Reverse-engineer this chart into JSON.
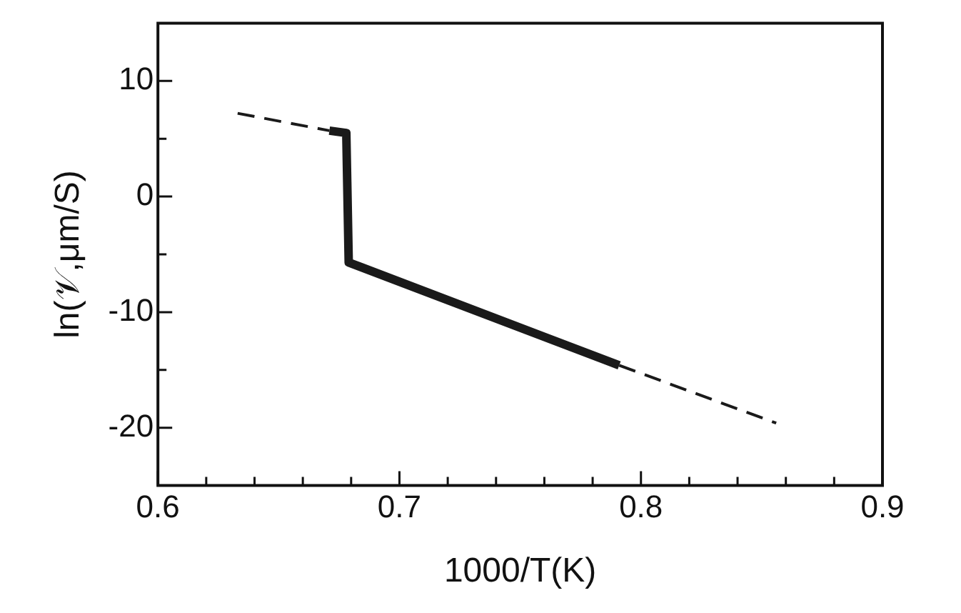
{
  "chart_data": {
    "type": "line",
    "xlabel": "1000/T(K)",
    "ylabel": "ln(𝒱,μm/S)",
    "xlim": [
      0.6,
      0.9
    ],
    "ylim": [
      -25,
      15
    ],
    "xticks": [
      0.6,
      {
        "value": 0.62,
        "label": null
      },
      {
        "value": 0.64,
        "label": null
      },
      {
        "value": 0.66,
        "label": null
      },
      {
        "value": 0.68,
        "label": null
      },
      0.7,
      {
        "value": 0.72,
        "label": null
      },
      {
        "value": 0.74,
        "label": null
      },
      {
        "value": 0.76,
        "label": null
      },
      {
        "value": 0.78,
        "label": null
      },
      0.8,
      {
        "value": 0.82,
        "label": null
      },
      {
        "value": 0.84,
        "label": null
      },
      {
        "value": 0.86,
        "label": null
      },
      {
        "value": 0.88,
        "label": null
      },
      0.9
    ],
    "yticks": [
      -20,
      {
        "value": -15,
        "label": null
      },
      -10,
      {
        "value": -5,
        "label": null
      },
      0,
      {
        "value": 5,
        "label": null
      },
      10
    ],
    "grid": false,
    "legend": false,
    "marker": "none",
    "series": [
      {
        "color": "#1a1a1a",
        "line_style": "dashed",
        "x": [
          0.633,
          0.671
        ],
        "values": [
          7.2,
          5.7
        ]
      },
      {
        "color": "#1a1a1a",
        "line_style": "solid",
        "x": [
          0.671,
          0.678,
          0.679,
          0.791
        ],
        "values": [
          5.7,
          5.5,
          -5.7,
          -14.6
        ]
      },
      {
        "color": "#1a1a1a",
        "line_style": "dashed",
        "x": [
          0.791,
          0.856
        ],
        "values": [
          -14.6,
          -19.6
        ]
      }
    ]
  }
}
